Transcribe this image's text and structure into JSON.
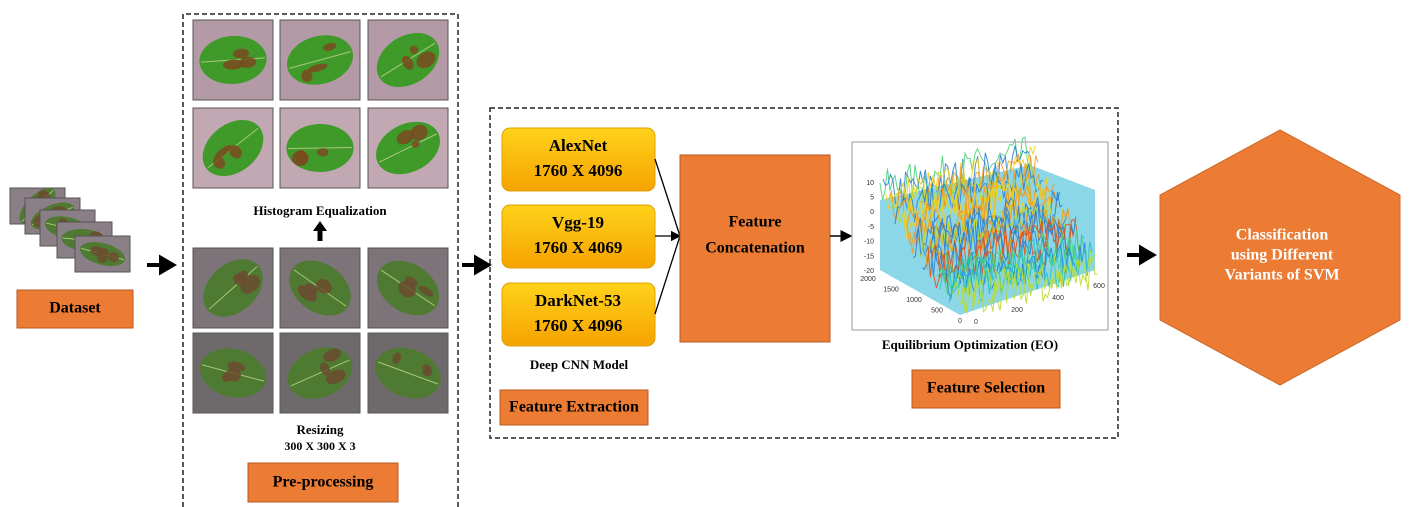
{
  "dataset": {
    "label": "Dataset"
  },
  "preprocessing": {
    "histogram_label": "Histogram Equalization",
    "resizing_label": "Resizing",
    "resizing_size": "300 X 300 X 3",
    "label": "Pre-processing"
  },
  "feature_extraction": {
    "models": [
      {
        "name": "AlexNet",
        "size": "1760 X 4096"
      },
      {
        "name": "Vgg-19",
        "size": "1760 X 4069"
      },
      {
        "name": "DarkNet-53",
        "size": "1760 X 4096"
      }
    ],
    "caption": "Deep CNN Model",
    "label": "Feature Extraction"
  },
  "concatenation": {
    "lines": [
      "Feature",
      "Concatenation"
    ]
  },
  "feature_selection": {
    "plot": {
      "z_ticks": [
        "10",
        "5",
        "0",
        "-5",
        "-10",
        "-15",
        "-20"
      ],
      "y_ticks": [
        "2000",
        "1500",
        "1000",
        "500",
        "0"
      ],
      "x_ticks": [
        "0",
        "200",
        "400",
        "600"
      ]
    },
    "caption": "Equilibrium Optimization (EO)",
    "label": "Feature Selection"
  },
  "classification": {
    "lines": [
      "Classification",
      "using Different",
      "Variants of SVM"
    ]
  }
}
